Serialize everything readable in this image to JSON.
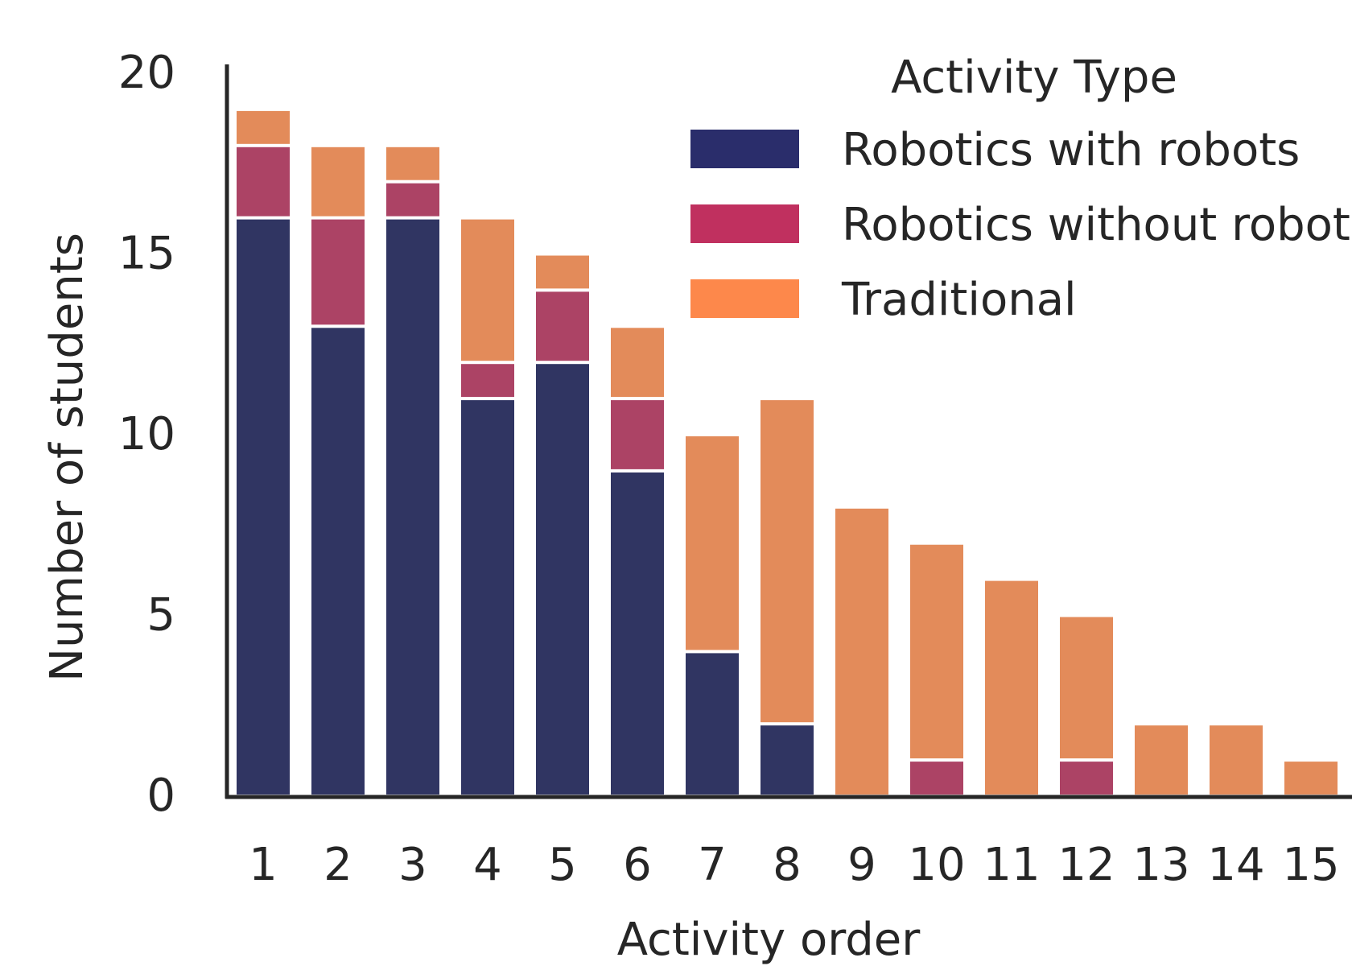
{
  "chart_data": {
    "type": "bar",
    "stacked": true,
    "title": "",
    "xlabel": "Activity order",
    "ylabel": "Number of students",
    "categories": [
      "1",
      "2",
      "3",
      "4",
      "5",
      "6",
      "7",
      "8",
      "9",
      "10",
      "11",
      "12",
      "13",
      "14",
      "15"
    ],
    "ylim": [
      0,
      20
    ],
    "yticks": [
      "0",
      "5",
      "10",
      "15",
      "20"
    ],
    "ytick_values": [
      0,
      5,
      10,
      15,
      20
    ],
    "grid": false,
    "legend": {
      "title": "Activity Type",
      "placement": "top-right"
    },
    "series": [
      {
        "name": "Robotics with robots",
        "color": "#2a2d6b",
        "bar_color": "#303562",
        "values": [
          16,
          13,
          16,
          11,
          12,
          9,
          4,
          2,
          0,
          0,
          0,
          0,
          0,
          0,
          0
        ]
      },
      {
        "name": "Robotics without robots",
        "color": "#c0305f",
        "bar_color": "#ac4365",
        "values": [
          2,
          3,
          1,
          1,
          2,
          2,
          0,
          0,
          0,
          1,
          0,
          1,
          0,
          0,
          0
        ]
      },
      {
        "name": "Traditional",
        "color": "#fd884b",
        "bar_color": "#e38b5a",
        "values": [
          1,
          2,
          1,
          4,
          1,
          2,
          6,
          9,
          8,
          6,
          6,
          4,
          2,
          2,
          1
        ]
      }
    ]
  }
}
